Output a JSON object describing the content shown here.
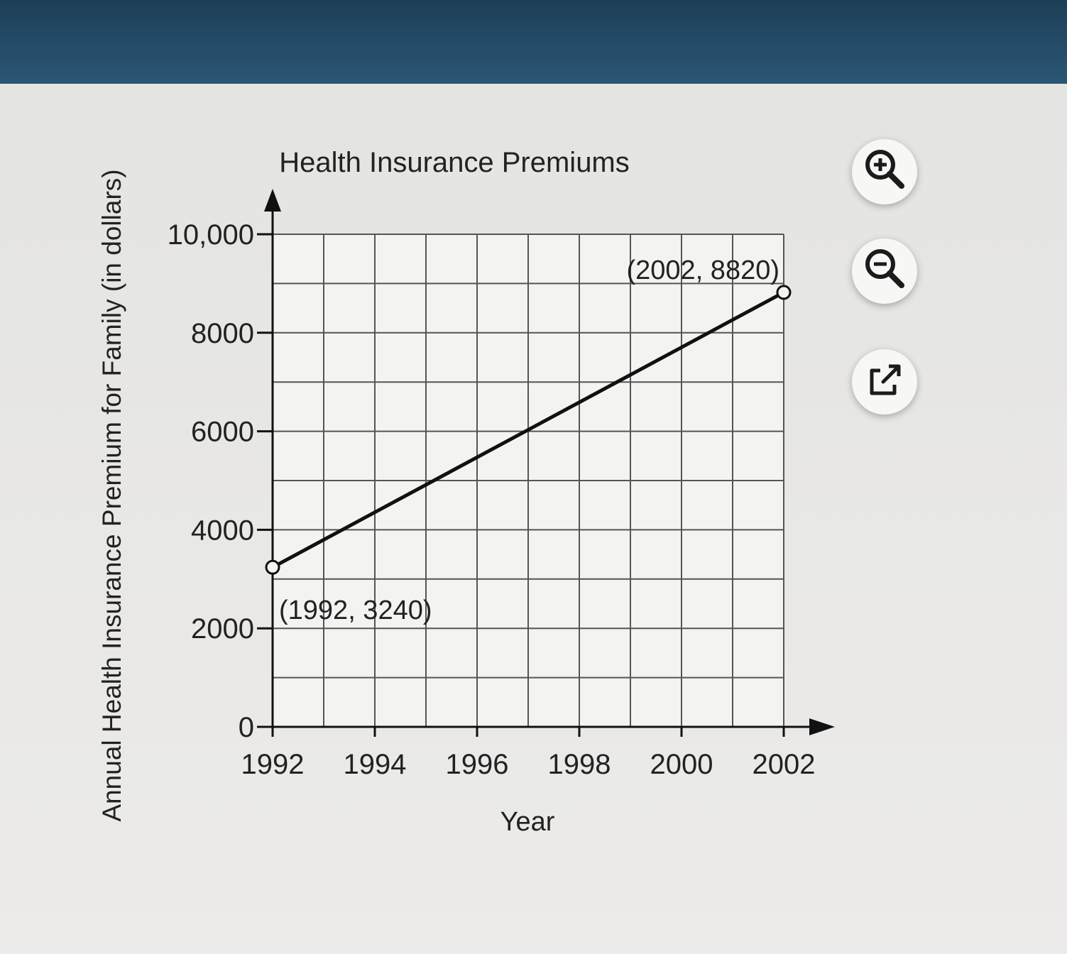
{
  "chart_data": {
    "type": "line",
    "title": "Health Insurance Premiums",
    "xlabel": "Year",
    "ylabel": "Annual Health Insurance Premium for Family (in dollars)",
    "x_ticks": [
      1992,
      1994,
      1996,
      1998,
      2000,
      2002
    ],
    "y_tick_labels": [
      "0",
      "2000",
      "4000",
      "6000",
      "8000",
      "10,000"
    ],
    "y_ticks": [
      0,
      2000,
      4000,
      6000,
      8000,
      10000
    ],
    "xlim": [
      1992,
      2002
    ],
    "ylim": [
      0,
      10000
    ],
    "grid": true,
    "x_grid_step": 1,
    "y_grid_step": 1000,
    "series": [
      {
        "x": [
          1992,
          2002
        ],
        "y": [
          3240,
          8820
        ]
      }
    ],
    "annotations": [
      "(1992, 3240)",
      "(2002, 8820)"
    ]
  },
  "toolbar": {
    "zoom_in_icon": "zoom-in-icon",
    "zoom_out_icon": "zoom-out-icon",
    "popout_icon": "external-link-icon"
  }
}
